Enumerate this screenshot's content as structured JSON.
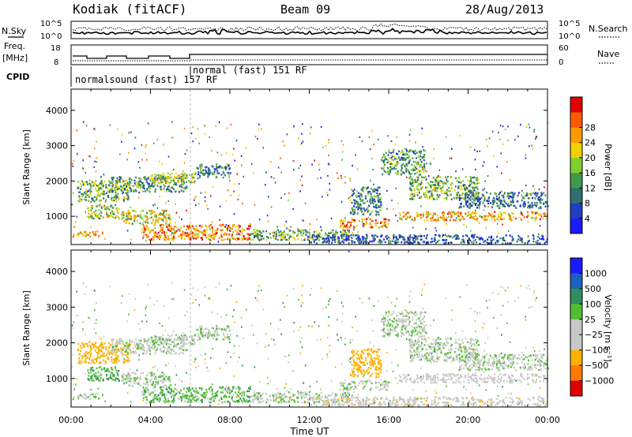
{
  "header": {
    "station": "Kodiak (fitACF)",
    "beam": "Beam 09",
    "date": "28/Aug/2013"
  },
  "top_panels": {
    "nsky": {
      "label": "N.Sky",
      "ticks": [
        "10^5",
        "10^0"
      ]
    },
    "nsearch": {
      "label": "N.Search",
      "ticks": [
        "10^5",
        "10^0"
      ]
    },
    "freq": {
      "label_line1": "Freq.",
      "label_line2": "[MHz]",
      "ticks": [
        "18",
        "8"
      ]
    },
    "nave": {
      "label": "Nave",
      "ticks": [
        "60",
        "0"
      ]
    },
    "cpid": {
      "label": "CPID",
      "segments": [
        {
          "text": "normalsound (fast) 157 RF",
          "start_hour": 0.0
        },
        {
          "text": "normal (fast) 151 RF",
          "start_hour": 6.0
        }
      ]
    }
  },
  "chart_data": [
    {
      "type": "heatmap",
      "name": "power",
      "xlabel": "",
      "ylabel": "Slant Range [km]",
      "xlim": [
        0,
        24
      ],
      "ylim": [
        200,
        4600
      ],
      "yticks": [
        "1000",
        "2000",
        "3000",
        "4000"
      ],
      "colorbar": {
        "label": "Power [dB]",
        "ticks": [
          "4",
          "8",
          "12",
          "16",
          "20",
          "24",
          "28"
        ],
        "colors": [
          "#1a1aff",
          "#1f3fbf",
          "#2f6f6f",
          "#3c9a4a",
          "#7fcf2f",
          "#f0d000",
          "#ff9a00",
          "#ff5a00",
          "#e00000"
        ]
      },
      "bands": [
        {
          "t0": 0.0,
          "t1": 1.6,
          "r0": 430,
          "r1": 600,
          "v": 22
        },
        {
          "t0": 0.3,
          "t1": 3.0,
          "r0": 1450,
          "r1": 2050,
          "v": 14
        },
        {
          "t0": 0.8,
          "t1": 2.4,
          "r0": 950,
          "r1": 1350,
          "v": 16
        },
        {
          "t0": 2.0,
          "t1": 5.8,
          "r0": 1700,
          "r1": 2150,
          "v": 12
        },
        {
          "t0": 4.0,
          "t1": 6.3,
          "r0": 1950,
          "r1": 2250,
          "v": 18
        },
        {
          "t0": 6.3,
          "t1": 8.0,
          "r0": 2100,
          "r1": 2500,
          "v": 9
        },
        {
          "t0": 3.5,
          "t1": 9.0,
          "r0": 350,
          "r1": 800,
          "v": 24
        },
        {
          "t0": 2.5,
          "t1": 5.0,
          "r0": 800,
          "r1": 1200,
          "v": 18
        },
        {
          "t0": 9.0,
          "t1": 14.0,
          "r0": 350,
          "r1": 650,
          "v": 14
        },
        {
          "t0": 13.5,
          "t1": 16.0,
          "r0": 700,
          "r1": 950,
          "v": 24
        },
        {
          "t0": 14.0,
          "t1": 15.6,
          "r0": 1050,
          "r1": 1850,
          "v": 10
        },
        {
          "t0": 12.0,
          "t1": 24.0,
          "r0": 250,
          "r1": 500,
          "v": 6
        },
        {
          "t0": 15.6,
          "t1": 17.8,
          "r0": 2200,
          "r1": 2900,
          "v": 12
        },
        {
          "t0": 17.0,
          "t1": 20.5,
          "r0": 1500,
          "r1": 2150,
          "v": 14
        },
        {
          "t0": 19.5,
          "t1": 24.0,
          "r0": 1250,
          "r1": 1700,
          "v": 8
        },
        {
          "t0": 16.5,
          "t1": 24.0,
          "r0": 900,
          "r1": 1150,
          "v": 22
        }
      ]
    },
    {
      "type": "heatmap",
      "name": "velocity",
      "xlabel": "Time UT",
      "ylabel": "Slant Range [km]",
      "xlim": [
        0,
        24
      ],
      "ylim": [
        200,
        4600
      ],
      "xticks": [
        "00:00",
        "04:00",
        "08:00",
        "12:00",
        "16:00",
        "20:00",
        "00:00"
      ],
      "yticks": [
        "1000",
        "2000",
        "3000",
        "4000"
      ],
      "colorbar": {
        "label": "Velocity [m s⁻¹]",
        "ticks": [
          "1000",
          "500",
          "100",
          "25",
          "−25",
          "−100",
          "−500",
          "−1000"
        ],
        "colors": [
          "#1a1aff",
          "#1f5fbf",
          "#2f8f5f",
          "#4fbf2f",
          "#c8c8c8",
          "#c8c8c8",
          "#ffb000",
          "#ff7a00",
          "#e00000"
        ]
      },
      "bands": [
        {
          "t0": 0.0,
          "t1": 1.6,
          "r0": 430,
          "r1": 600,
          "v": 0
        },
        {
          "t0": 0.3,
          "t1": 3.0,
          "r0": 1450,
          "r1": 2050,
          "v": -300
        },
        {
          "t0": 0.8,
          "t1": 2.4,
          "r0": 950,
          "r1": 1350,
          "v": 80
        },
        {
          "t0": 2.0,
          "t1": 5.8,
          "r0": 1700,
          "r1": 2150,
          "v": 0
        },
        {
          "t0": 4.0,
          "t1": 6.3,
          "r0": 1950,
          "r1": 2250,
          "v": 0
        },
        {
          "t0": 6.3,
          "t1": 8.0,
          "r0": 2100,
          "r1": 2500,
          "v": 0
        },
        {
          "t0": 3.5,
          "t1": 9.0,
          "r0": 350,
          "r1": 800,
          "v": 60
        },
        {
          "t0": 2.5,
          "t1": 5.0,
          "r0": 800,
          "r1": 1200,
          "v": 0
        },
        {
          "t0": 9.0,
          "t1": 14.0,
          "r0": 350,
          "r1": 650,
          "v": 0
        },
        {
          "t0": 13.5,
          "t1": 16.0,
          "r0": 700,
          "r1": 950,
          "v": 0
        },
        {
          "t0": 14.0,
          "t1": 15.6,
          "r0": 1050,
          "r1": 1850,
          "v": -300
        },
        {
          "t0": 12.0,
          "t1": 24.0,
          "r0": 250,
          "r1": 500,
          "v": -60
        },
        {
          "t0": 15.6,
          "t1": 17.8,
          "r0": 2200,
          "r1": 2900,
          "v": 0
        },
        {
          "t0": 17.0,
          "t1": 20.5,
          "r0": 1500,
          "r1": 2150,
          "v": 0
        },
        {
          "t0": 19.5,
          "t1": 24.0,
          "r0": 1250,
          "r1": 1700,
          "v": 0
        },
        {
          "t0": 16.5,
          "t1": 24.0,
          "r0": 900,
          "r1": 1150,
          "v": -40
        }
      ]
    }
  ]
}
